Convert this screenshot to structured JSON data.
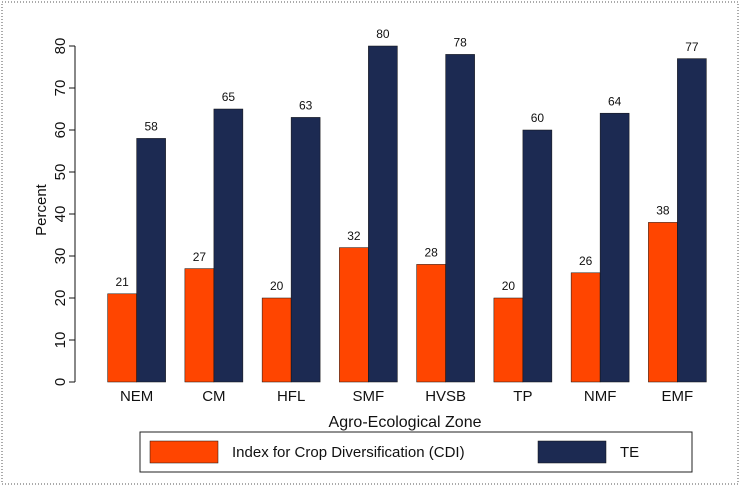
{
  "chart_data": {
    "type": "bar",
    "categories": [
      "NEM",
      "CM",
      "HFL",
      "SMF",
      "HVSB",
      "TP",
      "NMF",
      "EMF"
    ],
    "series": [
      {
        "name": "Index for Crop Diversification (CDI)",
        "color": "#ff4500",
        "values": [
          21,
          27,
          20,
          32,
          28,
          20,
          26,
          38
        ]
      },
      {
        "name": "TE",
        "color": "#1c2a52",
        "values": [
          58,
          65,
          63,
          80,
          78,
          60,
          64,
          77
        ]
      }
    ],
    "ylabel": "Percent",
    "xlabel": "Agro-Ecological Zone",
    "ylim": [
      0,
      80
    ],
    "yticks": [
      0,
      10,
      20,
      30,
      40,
      50,
      60,
      70,
      80
    ],
    "grid": false,
    "legend": "bottom"
  }
}
